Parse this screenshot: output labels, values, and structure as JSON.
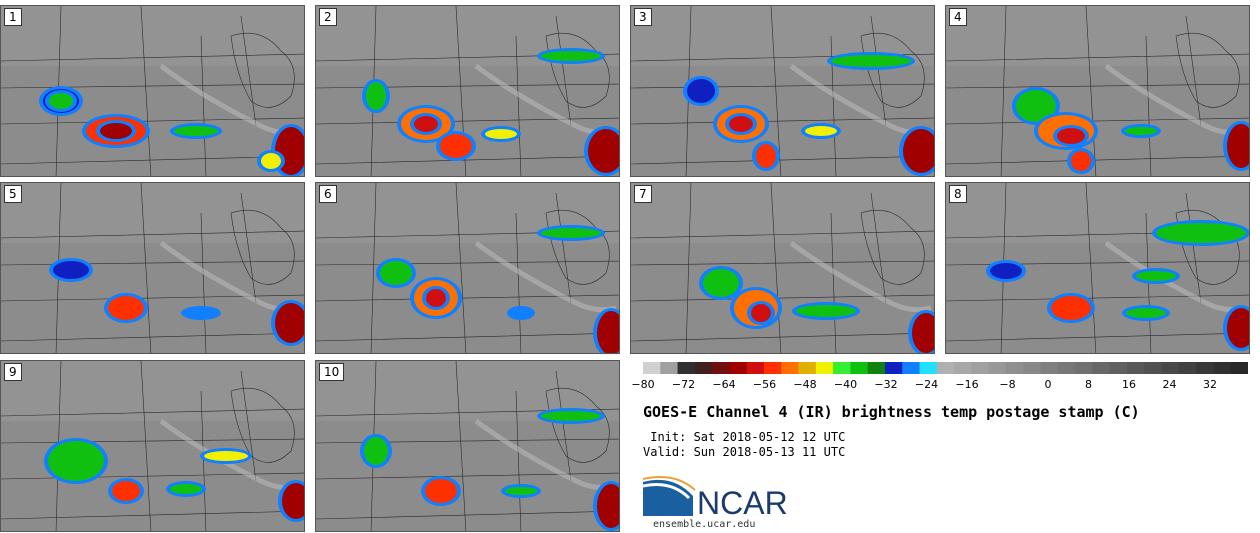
{
  "panels": [
    {
      "label": "1"
    },
    {
      "label": "2"
    },
    {
      "label": "3"
    },
    {
      "label": "4"
    },
    {
      "label": "5"
    },
    {
      "label": "6"
    },
    {
      "label": "7"
    },
    {
      "label": "8"
    },
    {
      "label": "9"
    },
    {
      "label": "10"
    }
  ],
  "colorbar": {
    "ticks": [
      "−80",
      "−72",
      "−64",
      "−56",
      "−48",
      "−40",
      "−32",
      "−24",
      "−16",
      "−8",
      "0",
      "8",
      "16",
      "24",
      "32"
    ],
    "colors": [
      "#d0d0d0",
      "#a0a0a0",
      "#303030",
      "#402020",
      "#701010",
      "#a00000",
      "#d01010",
      "#ff3000",
      "#ff7000",
      "#e0b000",
      "#f0f000",
      "#30f030",
      "#10c010",
      "#108010",
      "#1020c0",
      "#1080ff",
      "#20e0ff",
      "#b0b0b0",
      "#a8a8a8",
      "#a0a0a0",
      "#989898",
      "#909090",
      "#888888",
      "#808080",
      "#787878",
      "#707070",
      "#686868",
      "#606060",
      "#585858",
      "#505050",
      "#484848",
      "#404040",
      "#383838",
      "#303030",
      "#282828"
    ]
  },
  "title": "GOES-E Channel 4 (IR) brightness temp postage stamp (C)",
  "init": " Init: Sat 2018-05-12 12 UTC",
  "valid": "Valid: Sun 2018-05-13 11 UTC",
  "logo_text": "NCAR",
  "site": "ensemble.ucar.edu"
}
